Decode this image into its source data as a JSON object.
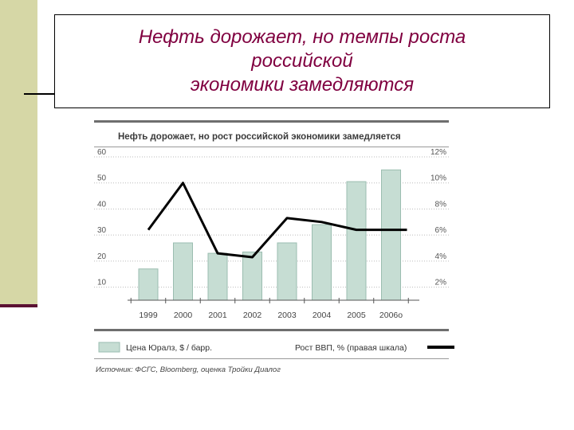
{
  "slide": {
    "title_lines": [
      "Нефть дорожает, но темпы роста",
      "российской",
      "экономики замедляются"
    ]
  },
  "colors": {
    "bar_fill": "#c6ddd3",
    "bar_stroke": "#9bbdb0",
    "line": "#000000",
    "title_text": "#800040",
    "side_bar": "#d6d7a6",
    "side_rule": "#5b1233"
  },
  "chart_data": {
    "type": "bar+line",
    "title": "Нефть дорожает, но рост российской экономики замедляется",
    "categories": [
      "1999",
      "2000",
      "2001",
      "2002",
      "2003",
      "2004",
      "2005",
      "2006о"
    ],
    "series": [
      {
        "name": "Цена Юралз, $ / барр.",
        "type": "bar",
        "axis": "left",
        "values": [
          17,
          27,
          23,
          23.5,
          27,
          34,
          50.5,
          55
        ]
      },
      {
        "name": "Рост ВВП, % (правая шкала)",
        "type": "line",
        "axis": "right",
        "values": [
          6.4,
          10.0,
          4.6,
          4.3,
          7.3,
          7.0,
          6.4,
          6.4
        ]
      }
    ],
    "left_axis": {
      "ticks": [
        "10",
        "20",
        "30",
        "40",
        "50",
        "60"
      ],
      "ylim": [
        5,
        60
      ]
    },
    "right_axis": {
      "ticks": [
        "2%",
        "4%",
        "6%",
        "8%",
        "10%",
        "12%"
      ],
      "ylim": [
        1,
        12
      ]
    },
    "grid": "horizontal-dotted",
    "legend_position": "bottom",
    "source": "Источник: ФСГС, Bloomberg, оценка Тройки Диалог"
  }
}
